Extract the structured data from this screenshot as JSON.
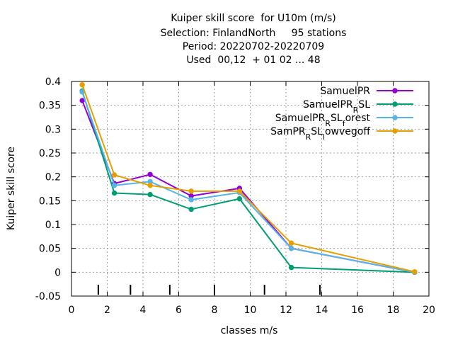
{
  "chart_data": {
    "type": "line",
    "title_lines": [
      "Kuiper skill score  for U10m (m/s)",
      "Selection: FinlandNorth     95 stations",
      "Period: 20220702-20220709",
      "Used  00,12  + 01 02 ... 48"
    ],
    "xlabel": "classes m/s",
    "ylabel": "Kuiper skill score",
    "xlim": [
      0,
      20
    ],
    "ylim": [
      -0.05,
      0.4
    ],
    "x_ticks": [
      0,
      2,
      4,
      6,
      8,
      10,
      12,
      14,
      16,
      18,
      20
    ],
    "x_tick_labels": [
      "0",
      "2",
      "4",
      "6",
      "8",
      "10",
      "12",
      "14",
      "16",
      "18",
      "20"
    ],
    "y_ticks": [
      -0.05,
      0,
      0.05,
      0.1,
      0.15,
      0.2,
      0.25,
      0.3,
      0.35,
      0.4
    ],
    "y_tick_labels": [
      "-0.05",
      "0",
      "0.05",
      "0.1",
      "0.15",
      "0.2",
      "0.25",
      "0.3",
      "0.35",
      "0.4"
    ],
    "grid": true,
    "legend_position": "top-right",
    "class_boundaries": [
      1.5,
      3.3,
      5.5,
      8,
      10.8,
      13.9
    ],
    "x": [
      0.6,
      2.4,
      4.4,
      6.7,
      9.4,
      12.3,
      19.2
    ],
    "series": [
      {
        "name_parts": [
          [
            "SamuelPR",
            "normal"
          ]
        ],
        "color": "#9400d3",
        "values": [
          0.36,
          0.186,
          0.205,
          0.16,
          0.176,
          0.05,
          0.0
        ]
      },
      {
        "name_parts": [
          [
            "SamuelPR",
            "normal"
          ],
          [
            "R",
            "sub"
          ],
          [
            "SL",
            "normal"
          ]
        ],
        "color": "#009e73",
        "values": [
          0.38,
          0.166,
          0.163,
          0.132,
          0.154,
          0.01,
          0.0
        ]
      },
      {
        "name_parts": [
          [
            "SamuelPR",
            "normal"
          ],
          [
            "R",
            "sub"
          ],
          [
            "SL",
            "normal"
          ],
          [
            "f",
            "sub"
          ],
          [
            "orest",
            "normal"
          ]
        ],
        "color": "#56b4e9",
        "values": [
          0.378,
          0.182,
          0.19,
          0.152,
          0.167,
          0.05,
          0.0
        ]
      },
      {
        "name_parts": [
          [
            "SamPR",
            "normal"
          ],
          [
            "R",
            "sub"
          ],
          [
            "SL",
            "normal"
          ],
          [
            "l",
            "sub"
          ],
          [
            "owvegoff",
            "normal"
          ]
        ],
        "color": "#e69f00",
        "values": [
          0.393,
          0.204,
          0.182,
          0.17,
          0.17,
          0.061,
          0.001
        ]
      }
    ]
  }
}
